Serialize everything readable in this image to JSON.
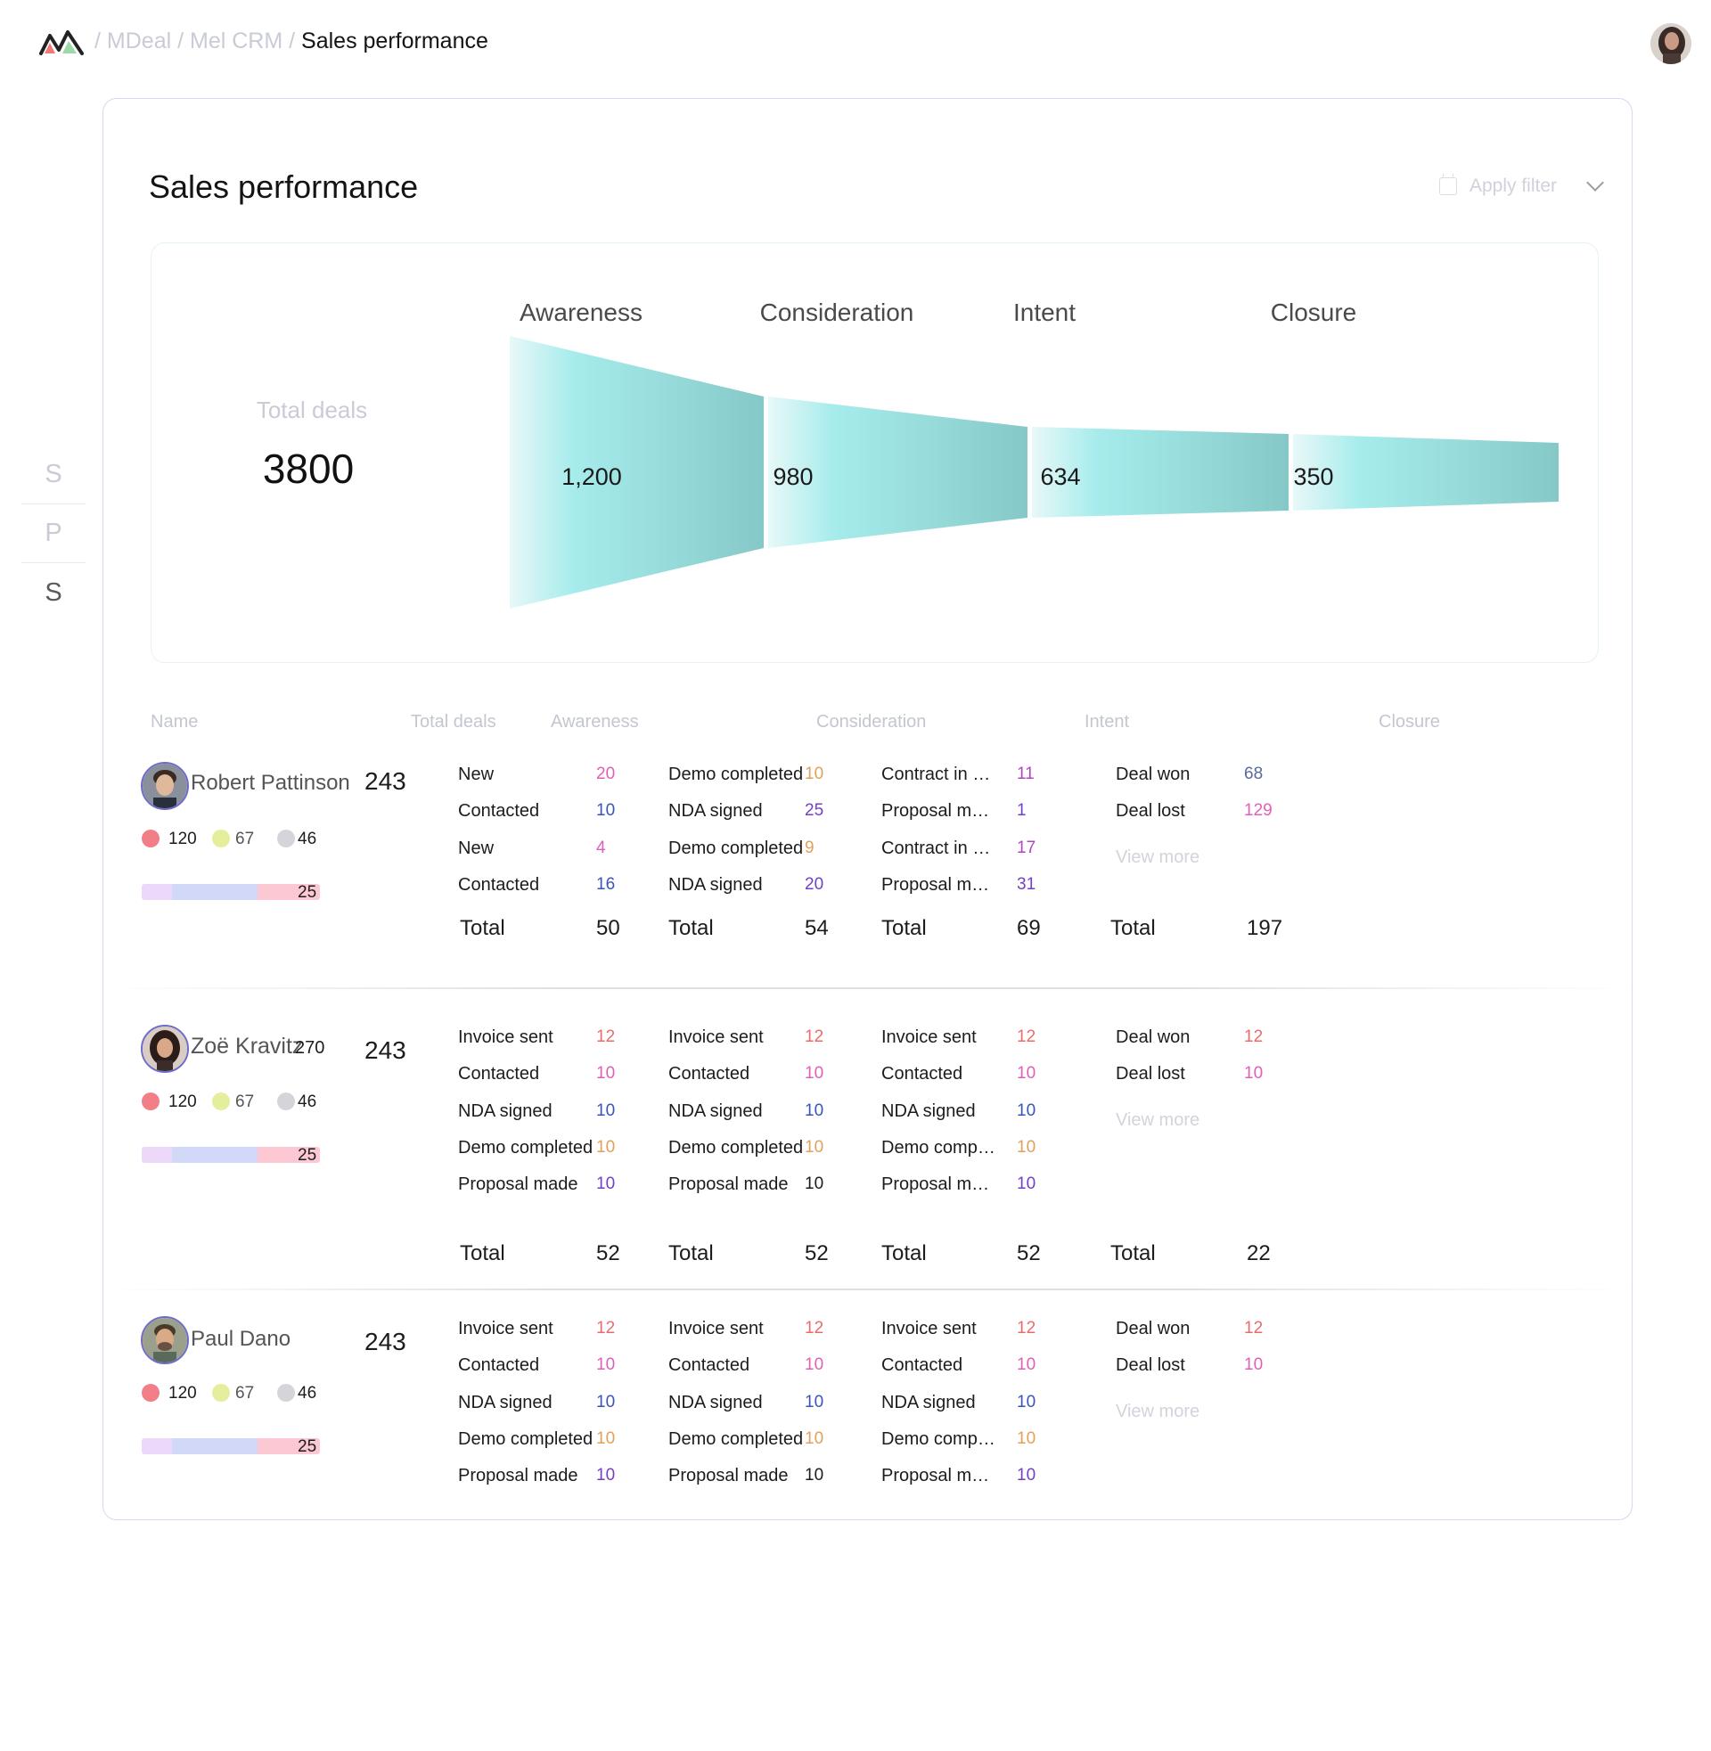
{
  "breadcrumb": {
    "items": [
      "MDeal",
      "Mel CRM"
    ],
    "current": "Sales performance"
  },
  "rail": [
    "S",
    "P",
    "S"
  ],
  "page": {
    "title": "Sales performance",
    "filter_label": "Apply filter"
  },
  "funnel": {
    "total_label": "Total deals",
    "total_value": "3800",
    "stages": [
      {
        "name": "Awareness",
        "value": "1,200"
      },
      {
        "name": "Consideration",
        "value": "980"
      },
      {
        "name": "Intent",
        "value": "634"
      },
      {
        "name": "Closure",
        "value": "350"
      }
    ]
  },
  "table": {
    "headers": [
      "Name",
      "Total deals",
      "Awareness",
      "Consideration",
      "Intent",
      "Closure"
    ],
    "total_label": "Total",
    "view_more": "View more",
    "rows": [
      {
        "name": "Robert Pattinson",
        "extra": "",
        "total_deals": "243",
        "dots": [
          "120",
          "67",
          "46"
        ],
        "bar_value": "25",
        "awareness": {
          "items": [
            {
              "label": "New",
              "value": "20",
              "color": "#e060b8"
            },
            {
              "label": "Contacted",
              "value": "10",
              "color": "#3a55b8"
            },
            {
              "label": "New",
              "value": "4",
              "color": "#e060b8"
            },
            {
              "label": "Contacted",
              "value": "16",
              "color": "#3a55b8"
            }
          ],
          "total": "50"
        },
        "consideration": {
          "items": [
            {
              "label": "Demo completed",
              "value": "10",
              "color": "#e2a05a"
            },
            {
              "label": "NDA signed",
              "value": "25",
              "color": "#7340c8"
            },
            {
              "label": "Demo completed",
              "value": "9",
              "color": "#e2a05a"
            },
            {
              "label": "NDA signed",
              "value": "20",
              "color": "#7340c8"
            }
          ],
          "total": "54"
        },
        "intent": {
          "items": [
            {
              "label": "Contract in ne…",
              "value": "11",
              "color": "#b045c0"
            },
            {
              "label": "Proposal made",
              "value": "1",
              "color": "#7340c8"
            },
            {
              "label": "Contract in ne…",
              "value": "17",
              "color": "#b045c0"
            },
            {
              "label": "Proposal made",
              "value": "31",
              "color": "#7340c8"
            }
          ],
          "total": "69"
        },
        "closure": {
          "items": [
            {
              "label": "Deal won",
              "value": "68",
              "color": "#5a6a9a"
            },
            {
              "label": "Deal lost",
              "value": "129",
              "color": "#e060b8"
            }
          ],
          "total": "197"
        }
      },
      {
        "name": "Zoë Kravitz",
        "extra": "270",
        "total_deals": "243",
        "dots": [
          "120",
          "67",
          "46"
        ],
        "bar_value": "25",
        "awareness": {
          "items": [
            {
              "label": "Invoice sent",
              "value": "12",
              "color": "#ee6a6a"
            },
            {
              "label": "Contacted",
              "value": "10",
              "color": "#e060b8"
            },
            {
              "label": "NDA signed",
              "value": "10",
              "color": "#3a55b8"
            },
            {
              "label": "Demo completed",
              "value": "10",
              "color": "#e2a05a"
            },
            {
              "label": "Proposal made",
              "value": "10",
              "color": "#7340c8"
            }
          ],
          "total": "52"
        },
        "consideration": {
          "items": [
            {
              "label": "Invoice sent",
              "value": "12",
              "color": "#ee6a6a"
            },
            {
              "label": "Contacted",
              "value": "10",
              "color": "#e060b8"
            },
            {
              "label": "NDA signed",
              "value": "10",
              "color": "#3a55b8"
            },
            {
              "label": "Demo completed",
              "value": "10",
              "color": "#e2a05a"
            },
            {
              "label": "Proposal made",
              "value": "10",
              "color": "#1c1c1c"
            }
          ],
          "total": "52"
        },
        "intent": {
          "items": [
            {
              "label": "Invoice sent",
              "value": "12",
              "color": "#ee6a6a"
            },
            {
              "label": "Contacted",
              "value": "10",
              "color": "#e060b8"
            },
            {
              "label": "NDA signed",
              "value": "10",
              "color": "#3a55b8"
            },
            {
              "label": "Demo completed",
              "value": "10",
              "color": "#e2a05a"
            },
            {
              "label": "Proposal made",
              "value": "10",
              "color": "#7340c8"
            }
          ],
          "total": "52"
        },
        "closure": {
          "items": [
            {
              "label": "Deal won",
              "value": "12",
              "color": "#ee6a6a"
            },
            {
              "label": "Deal lost",
              "value": "10",
              "color": "#e060b8"
            }
          ],
          "total": "22"
        }
      },
      {
        "name": "Paul Dano",
        "extra": "",
        "total_deals": "243",
        "dots": [
          "120",
          "67",
          "46"
        ],
        "bar_value": "25",
        "awareness": {
          "items": [
            {
              "label": "Invoice sent",
              "value": "12",
              "color": "#ee6a6a"
            },
            {
              "label": "Contacted",
              "value": "10",
              "color": "#e060b8"
            },
            {
              "label": "NDA signed",
              "value": "10",
              "color": "#3a55b8"
            },
            {
              "label": "Demo completed",
              "value": "10",
              "color": "#e2a05a"
            },
            {
              "label": "Proposal made",
              "value": "10",
              "color": "#7340c8"
            }
          ],
          "total": ""
        },
        "consideration": {
          "items": [
            {
              "label": "Invoice sent",
              "value": "12",
              "color": "#ee6a6a"
            },
            {
              "label": "Contacted",
              "value": "10",
              "color": "#e060b8"
            },
            {
              "label": "NDA signed",
              "value": "10",
              "color": "#3a55b8"
            },
            {
              "label": "Demo completed",
              "value": "10",
              "color": "#e2a05a"
            },
            {
              "label": "Proposal made",
              "value": "10",
              "color": "#1c1c1c"
            }
          ],
          "total": ""
        },
        "intent": {
          "items": [
            {
              "label": "Invoice sent",
              "value": "12",
              "color": "#ee6a6a"
            },
            {
              "label": "Contacted",
              "value": "10",
              "color": "#e060b8"
            },
            {
              "label": "NDA signed",
              "value": "10",
              "color": "#3a55b8"
            },
            {
              "label": "Demo completed",
              "value": "10",
              "color": "#e2a05a"
            },
            {
              "label": "Proposal made",
              "value": "10",
              "color": "#7340c8"
            }
          ],
          "total": ""
        },
        "closure": {
          "items": [
            {
              "label": "Deal won",
              "value": "12",
              "color": "#ee6a6a"
            },
            {
              "label": "Deal lost",
              "value": "10",
              "color": "#e060b8"
            }
          ],
          "total": ""
        }
      }
    ]
  },
  "colors": {
    "dot_1": "#f27e88",
    "dot_2": "#e5ee9c",
    "dot_3": "#d4d5da",
    "bar_1": "#ecd8f8",
    "bar_2": "#d1d8f8",
    "bar_3": "#fbc8d4",
    "accent_border": "#d8d7f4",
    "funnel_light": "#e6f8f8",
    "funnel_dark": "#88caca"
  },
  "icons": {
    "logo": "mountain-logo-icon",
    "filter": "calendar-icon",
    "dropdown": "chevron-down-icon"
  }
}
